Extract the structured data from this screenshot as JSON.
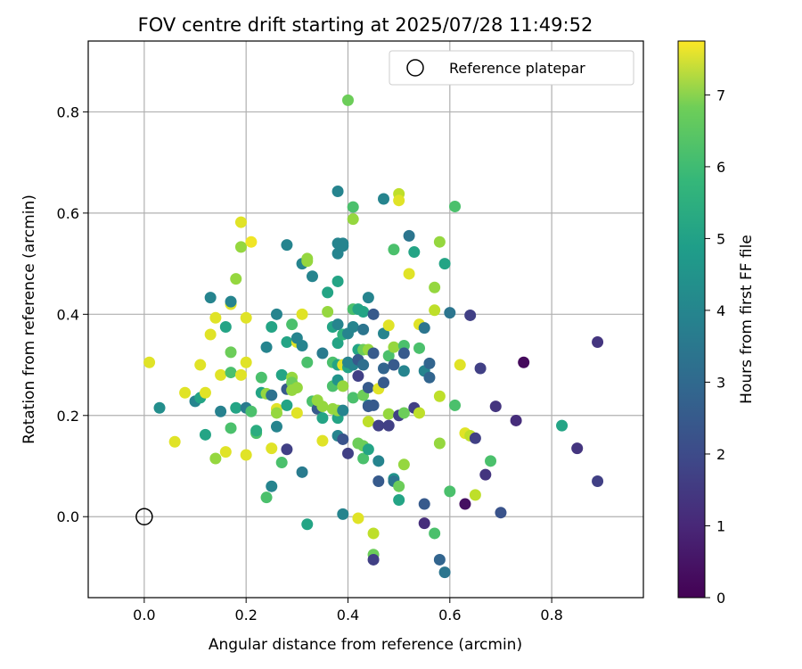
{
  "chart_data": {
    "type": "scatter",
    "title": "FOV centre drift starting at 2025/07/28 11:49:52",
    "xlabel": "Angular distance from reference (arcmin)",
    "ylabel": "Rotation from reference (arcmin)",
    "xlim": [
      -0.11,
      0.98
    ],
    "ylim": [
      -0.16,
      0.94
    ],
    "xticks": [
      "0.0",
      "0.2",
      "0.4",
      "0.6",
      "0.8"
    ],
    "xtick_values": [
      0.0,
      0.2,
      0.4,
      0.6,
      0.8
    ],
    "yticks": [
      "0.0",
      "0.2",
      "0.4",
      "0.6",
      "0.8"
    ],
    "ytick_values": [
      0.0,
      0.2,
      0.4,
      0.6,
      0.8
    ],
    "grid": true,
    "legend": {
      "placement": "top-right",
      "label": "Reference platepar"
    },
    "reference_point": {
      "x": 0.0,
      "y": 0.0
    },
    "colorbar": {
      "label": "Hours from first FF file",
      "range": [
        0,
        7.75
      ],
      "ticks": [
        "0",
        "1",
        "2",
        "3",
        "4",
        "5",
        "6",
        "7"
      ],
      "tick_values": [
        0,
        1,
        2,
        3,
        4,
        5,
        6,
        7
      ],
      "colormap": "viridis"
    },
    "points": [
      {
        "x": 0.01,
        "y": 0.305,
        "c": 7.4
      },
      {
        "x": 0.03,
        "y": 0.215,
        "c": 3.8
      },
      {
        "x": 0.06,
        "y": 0.148,
        "c": 7.4
      },
      {
        "x": 0.08,
        "y": 0.245,
        "c": 7.4
      },
      {
        "x": 0.1,
        "y": 0.228,
        "c": 3.5
      },
      {
        "x": 0.11,
        "y": 0.3,
        "c": 7.4
      },
      {
        "x": 0.11,
        "y": 0.235,
        "c": 4.5
      },
      {
        "x": 0.12,
        "y": 0.162,
        "c": 4.5
      },
      {
        "x": 0.12,
        "y": 0.245,
        "c": 7.4
      },
      {
        "x": 0.13,
        "y": 0.36,
        "c": 7.4
      },
      {
        "x": 0.13,
        "y": 0.433,
        "c": 3.5
      },
      {
        "x": 0.14,
        "y": 0.393,
        "c": 7.4
      },
      {
        "x": 0.14,
        "y": 0.115,
        "c": 6.5
      },
      {
        "x": 0.15,
        "y": 0.28,
        "c": 7.4
      },
      {
        "x": 0.15,
        "y": 0.208,
        "c": 3.4
      },
      {
        "x": 0.16,
        "y": 0.128,
        "c": 7.4
      },
      {
        "x": 0.16,
        "y": 0.375,
        "c": 4.5
      },
      {
        "x": 0.17,
        "y": 0.42,
        "c": 7.4
      },
      {
        "x": 0.17,
        "y": 0.425,
        "c": 3.5
      },
      {
        "x": 0.17,
        "y": 0.285,
        "c": 5.5
      },
      {
        "x": 0.17,
        "y": 0.325,
        "c": 6.0
      },
      {
        "x": 0.17,
        "y": 0.175,
        "c": 5.5
      },
      {
        "x": 0.18,
        "y": 0.215,
        "c": 4.5
      },
      {
        "x": 0.18,
        "y": 0.47,
        "c": 6.5
      },
      {
        "x": 0.19,
        "y": 0.28,
        "c": 7.4
      },
      {
        "x": 0.19,
        "y": 0.582,
        "c": 7.4
      },
      {
        "x": 0.19,
        "y": 0.533,
        "c": 6.5
      },
      {
        "x": 0.2,
        "y": 0.122,
        "c": 7.4
      },
      {
        "x": 0.2,
        "y": 0.215,
        "c": 3.2
      },
      {
        "x": 0.2,
        "y": 0.305,
        "c": 7.4
      },
      {
        "x": 0.2,
        "y": 0.393,
        "c": 7.4
      },
      {
        "x": 0.21,
        "y": 0.543,
        "c": 7.6
      },
      {
        "x": 0.21,
        "y": 0.208,
        "c": 5.5
      },
      {
        "x": 0.22,
        "y": 0.165,
        "c": 5.5
      },
      {
        "x": 0.22,
        "y": 0.17,
        "c": 4.8
      },
      {
        "x": 0.23,
        "y": 0.275,
        "c": 5.5
      },
      {
        "x": 0.23,
        "y": 0.245,
        "c": 4.5
      },
      {
        "x": 0.24,
        "y": 0.243,
        "c": 6.5
      },
      {
        "x": 0.24,
        "y": 0.335,
        "c": 3.5
      },
      {
        "x": 0.24,
        "y": 0.038,
        "c": 5.5
      },
      {
        "x": 0.25,
        "y": 0.375,
        "c": 4.5
      },
      {
        "x": 0.25,
        "y": 0.135,
        "c": 7.4
      },
      {
        "x": 0.25,
        "y": 0.24,
        "c": 2.9
      },
      {
        "x": 0.25,
        "y": 0.06,
        "c": 3.5
      },
      {
        "x": 0.26,
        "y": 0.4,
        "c": 3.5
      },
      {
        "x": 0.26,
        "y": 0.178,
        "c": 3.5
      },
      {
        "x": 0.26,
        "y": 0.213,
        "c": 7.4
      },
      {
        "x": 0.26,
        "y": 0.205,
        "c": 6.5
      },
      {
        "x": 0.27,
        "y": 0.28,
        "c": 4.5
      },
      {
        "x": 0.27,
        "y": 0.107,
        "c": 5.5
      },
      {
        "x": 0.28,
        "y": 0.537,
        "c": 3.5
      },
      {
        "x": 0.28,
        "y": 0.345,
        "c": 4.5
      },
      {
        "x": 0.28,
        "y": 0.22,
        "c": 4.5
      },
      {
        "x": 0.28,
        "y": 0.133,
        "c": 1.5
      },
      {
        "x": 0.28,
        "y": 0.252,
        "c": 2.2
      },
      {
        "x": 0.29,
        "y": 0.275,
        "c": 6.5
      },
      {
        "x": 0.29,
        "y": 0.38,
        "c": 5.5
      },
      {
        "x": 0.29,
        "y": 0.265,
        "c": 6.0
      },
      {
        "x": 0.29,
        "y": 0.25,
        "c": 6.5
      },
      {
        "x": 0.3,
        "y": 0.205,
        "c": 7.4
      },
      {
        "x": 0.3,
        "y": 0.255,
        "c": 6.5
      },
      {
        "x": 0.3,
        "y": 0.345,
        "c": 7.4
      },
      {
        "x": 0.3,
        "y": 0.353,
        "c": 3.5
      },
      {
        "x": 0.31,
        "y": 0.088,
        "c": 3.2
      },
      {
        "x": 0.31,
        "y": 0.4,
        "c": 7.4
      },
      {
        "x": 0.31,
        "y": 0.338,
        "c": 3.5
      },
      {
        "x": 0.31,
        "y": 0.5,
        "c": 3.5
      },
      {
        "x": 0.32,
        "y": 0.505,
        "c": 6.5
      },
      {
        "x": 0.32,
        "y": 0.51,
        "c": 6.5
      },
      {
        "x": 0.32,
        "y": 0.305,
        "c": 5.5
      },
      {
        "x": 0.32,
        "y": -0.015,
        "c": 4.5
      },
      {
        "x": 0.33,
        "y": 0.475,
        "c": 3.5
      },
      {
        "x": 0.33,
        "y": 0.228,
        "c": 5.5
      },
      {
        "x": 0.34,
        "y": 0.213,
        "c": 2.2
      },
      {
        "x": 0.34,
        "y": 0.23,
        "c": 6.5
      },
      {
        "x": 0.35,
        "y": 0.195,
        "c": 4.5
      },
      {
        "x": 0.35,
        "y": 0.15,
        "c": 7.4
      },
      {
        "x": 0.35,
        "y": 0.323,
        "c": 3.2
      },
      {
        "x": 0.35,
        "y": 0.218,
        "c": 6.5
      },
      {
        "x": 0.36,
        "y": 0.443,
        "c": 4.5
      },
      {
        "x": 0.36,
        "y": 0.405,
        "c": 6.5
      },
      {
        "x": 0.37,
        "y": 0.375,
        "c": 4.5
      },
      {
        "x": 0.37,
        "y": 0.258,
        "c": 5.5
      },
      {
        "x": 0.37,
        "y": 0.305,
        "c": 5.5
      },
      {
        "x": 0.37,
        "y": 0.213,
        "c": 6.5
      },
      {
        "x": 0.38,
        "y": 0.643,
        "c": 3.5
      },
      {
        "x": 0.38,
        "y": 0.54,
        "c": 3.5
      },
      {
        "x": 0.38,
        "y": 0.52,
        "c": 3.5
      },
      {
        "x": 0.38,
        "y": 0.465,
        "c": 4.5
      },
      {
        "x": 0.38,
        "y": 0.38,
        "c": 3.5
      },
      {
        "x": 0.38,
        "y": 0.343,
        "c": 4.5
      },
      {
        "x": 0.38,
        "y": 0.195,
        "c": 4.5
      },
      {
        "x": 0.38,
        "y": 0.16,
        "c": 3.5
      },
      {
        "x": 0.38,
        "y": 0.21,
        "c": 6.5
      },
      {
        "x": 0.38,
        "y": 0.3,
        "c": 4.5
      },
      {
        "x": 0.38,
        "y": 0.27,
        "c": 4.0
      },
      {
        "x": 0.39,
        "y": 0.54,
        "c": 3.5
      },
      {
        "x": 0.39,
        "y": 0.535,
        "c": 3.5
      },
      {
        "x": 0.39,
        "y": 0.258,
        "c": 6.5
      },
      {
        "x": 0.39,
        "y": 0.153,
        "c": 2.0
      },
      {
        "x": 0.39,
        "y": 0.005,
        "c": 3.5
      },
      {
        "x": 0.39,
        "y": 0.3,
        "c": 7.4
      },
      {
        "x": 0.39,
        "y": 0.36,
        "c": 5.0
      },
      {
        "x": 0.39,
        "y": 0.21,
        "c": 3.5
      },
      {
        "x": 0.4,
        "y": 0.823,
        "c": 6.0
      },
      {
        "x": 0.4,
        "y": 0.362,
        "c": 3.5
      },
      {
        "x": 0.4,
        "y": 0.295,
        "c": 4.5
      },
      {
        "x": 0.4,
        "y": 0.125,
        "c": 1.5
      },
      {
        "x": 0.4,
        "y": 0.305,
        "c": 3.5
      },
      {
        "x": 0.41,
        "y": 0.588,
        "c": 6.5
      },
      {
        "x": 0.41,
        "y": 0.612,
        "c": 5.5
      },
      {
        "x": 0.41,
        "y": 0.41,
        "c": 5.5
      },
      {
        "x": 0.41,
        "y": 0.235,
        "c": 5.5
      },
      {
        "x": 0.41,
        "y": 0.375,
        "c": 3.5
      },
      {
        "x": 0.41,
        "y": 0.3,
        "c": 3.5
      },
      {
        "x": 0.42,
        "y": 0.41,
        "c": 4.5
      },
      {
        "x": 0.42,
        "y": 0.33,
        "c": 4.5
      },
      {
        "x": 0.42,
        "y": 0.31,
        "c": 2.2
      },
      {
        "x": 0.42,
        "y": 0.278,
        "c": 1.5
      },
      {
        "x": 0.42,
        "y": 0.145,
        "c": 6.0
      },
      {
        "x": 0.42,
        "y": -0.003,
        "c": 7.4
      },
      {
        "x": 0.43,
        "y": 0.405,
        "c": 4.5
      },
      {
        "x": 0.43,
        "y": 0.37,
        "c": 3.0
      },
      {
        "x": 0.43,
        "y": 0.33,
        "c": 6.0
      },
      {
        "x": 0.43,
        "y": 0.3,
        "c": 2.8
      },
      {
        "x": 0.43,
        "y": 0.24,
        "c": 6.0
      },
      {
        "x": 0.43,
        "y": 0.14,
        "c": 6.0
      },
      {
        "x": 0.43,
        "y": 0.115,
        "c": 5.5
      },
      {
        "x": 0.44,
        "y": 0.433,
        "c": 3.5
      },
      {
        "x": 0.44,
        "y": 0.33,
        "c": 6.5
      },
      {
        "x": 0.44,
        "y": 0.255,
        "c": 2.2
      },
      {
        "x": 0.44,
        "y": 0.22,
        "c": 3.5
      },
      {
        "x": 0.44,
        "y": 0.188,
        "c": 7.0
      },
      {
        "x": 0.44,
        "y": 0.133,
        "c": 4.5
      },
      {
        "x": 0.44,
        "y": 0.218,
        "c": 2.2
      },
      {
        "x": 0.45,
        "y": 0.4,
        "c": 2.2
      },
      {
        "x": 0.45,
        "y": 0.323,
        "c": 2.2
      },
      {
        "x": 0.45,
        "y": 0.22,
        "c": 2.2
      },
      {
        "x": 0.45,
        "y": -0.033,
        "c": 7.0
      },
      {
        "x": 0.45,
        "y": -0.075,
        "c": 6.0
      },
      {
        "x": 0.45,
        "y": -0.085,
        "c": 1.5
      },
      {
        "x": 0.46,
        "y": 0.253,
        "c": 7.4
      },
      {
        "x": 0.46,
        "y": 0.18,
        "c": 1.5
      },
      {
        "x": 0.46,
        "y": 0.07,
        "c": 2.2
      },
      {
        "x": 0.46,
        "y": 0.11,
        "c": 3.5
      },
      {
        "x": 0.47,
        "y": 0.628,
        "c": 3.5
      },
      {
        "x": 0.47,
        "y": 0.362,
        "c": 3.5
      },
      {
        "x": 0.47,
        "y": 0.293,
        "c": 2.5
      },
      {
        "x": 0.47,
        "y": 0.265,
        "c": 2.2
      },
      {
        "x": 0.48,
        "y": 0.18,
        "c": 1.5
      },
      {
        "x": 0.48,
        "y": 0.378,
        "c": 7.4
      },
      {
        "x": 0.48,
        "y": 0.318,
        "c": 5.5
      },
      {
        "x": 0.48,
        "y": 0.203,
        "c": 6.5
      },
      {
        "x": 0.49,
        "y": 0.335,
        "c": 6.5
      },
      {
        "x": 0.49,
        "y": 0.075,
        "c": 4.0
      },
      {
        "x": 0.49,
        "y": 0.07,
        "c": 3.0
      },
      {
        "x": 0.49,
        "y": 0.528,
        "c": 5.5
      },
      {
        "x": 0.49,
        "y": 0.3,
        "c": 2.2
      },
      {
        "x": 0.5,
        "y": 0.638,
        "c": 7.0
      },
      {
        "x": 0.5,
        "y": 0.625,
        "c": 7.4
      },
      {
        "x": 0.5,
        "y": 0.2,
        "c": 1.5
      },
      {
        "x": 0.5,
        "y": 0.06,
        "c": 6.0
      },
      {
        "x": 0.5,
        "y": 0.033,
        "c": 4.5
      },
      {
        "x": 0.51,
        "y": 0.338,
        "c": 5.5
      },
      {
        "x": 0.51,
        "y": 0.288,
        "c": 3.5
      },
      {
        "x": 0.51,
        "y": 0.205,
        "c": 6.0
      },
      {
        "x": 0.51,
        "y": 0.103,
        "c": 6.5
      },
      {
        "x": 0.51,
        "y": 0.323,
        "c": 2.2
      },
      {
        "x": 0.52,
        "y": 0.555,
        "c": 3.0
      },
      {
        "x": 0.52,
        "y": 0.48,
        "c": 7.4
      },
      {
        "x": 0.53,
        "y": 0.523,
        "c": 4.5
      },
      {
        "x": 0.53,
        "y": 0.215,
        "c": 1.5
      },
      {
        "x": 0.54,
        "y": 0.333,
        "c": 5.5
      },
      {
        "x": 0.54,
        "y": 0.38,
        "c": 7.4
      },
      {
        "x": 0.54,
        "y": 0.205,
        "c": 7.0
      },
      {
        "x": 0.55,
        "y": 0.288,
        "c": 3.5
      },
      {
        "x": 0.55,
        "y": 0.373,
        "c": 3.0
      },
      {
        "x": 0.55,
        "y": -0.013,
        "c": 1.0
      },
      {
        "x": 0.55,
        "y": 0.025,
        "c": 2.2
      },
      {
        "x": 0.56,
        "y": 0.303,
        "c": 2.5
      },
      {
        "x": 0.56,
        "y": 0.275,
        "c": 2.5
      },
      {
        "x": 0.57,
        "y": 0.453,
        "c": 6.5
      },
      {
        "x": 0.57,
        "y": 0.408,
        "c": 7.0
      },
      {
        "x": 0.57,
        "y": -0.033,
        "c": 5.5
      },
      {
        "x": 0.58,
        "y": 0.543,
        "c": 6.5
      },
      {
        "x": 0.58,
        "y": 0.145,
        "c": 6.5
      },
      {
        "x": 0.58,
        "y": 0.238,
        "c": 7.0
      },
      {
        "x": 0.58,
        "y": -0.085,
        "c": 2.5
      },
      {
        "x": 0.59,
        "y": 0.5,
        "c": 4.5
      },
      {
        "x": 0.59,
        "y": -0.11,
        "c": 3.0
      },
      {
        "x": 0.6,
        "y": 0.403,
        "c": 3.0
      },
      {
        "x": 0.6,
        "y": 0.05,
        "c": 5.5
      },
      {
        "x": 0.61,
        "y": 0.613,
        "c": 5.5
      },
      {
        "x": 0.61,
        "y": 0.22,
        "c": 5.5
      },
      {
        "x": 0.62,
        "y": 0.3,
        "c": 7.4
      },
      {
        "x": 0.63,
        "y": 0.165,
        "c": 7.4
      },
      {
        "x": 0.63,
        "y": 0.025,
        "c": 0.3
      },
      {
        "x": 0.64,
        "y": 0.398,
        "c": 1.5
      },
      {
        "x": 0.64,
        "y": 0.16,
        "c": 7.0
      },
      {
        "x": 0.65,
        "y": 0.155,
        "c": 1.5
      },
      {
        "x": 0.65,
        "y": 0.043,
        "c": 7.0
      },
      {
        "x": 0.66,
        "y": 0.293,
        "c": 1.5
      },
      {
        "x": 0.67,
        "y": 0.083,
        "c": 1.2
      },
      {
        "x": 0.68,
        "y": 0.11,
        "c": 5.5
      },
      {
        "x": 0.69,
        "y": 0.218,
        "c": 1.2
      },
      {
        "x": 0.7,
        "y": 0.008,
        "c": 2.0
      },
      {
        "x": 0.73,
        "y": 0.19,
        "c": 1.0
      },
      {
        "x": 0.745,
        "y": 0.305,
        "c": 0.2
      },
      {
        "x": 0.82,
        "y": 0.18,
        "c": 4.5
      },
      {
        "x": 0.85,
        "y": 0.135,
        "c": 1.2
      },
      {
        "x": 0.89,
        "y": 0.345,
        "c": 1.2
      },
      {
        "x": 0.89,
        "y": 0.07,
        "c": 1.5
      }
    ]
  }
}
